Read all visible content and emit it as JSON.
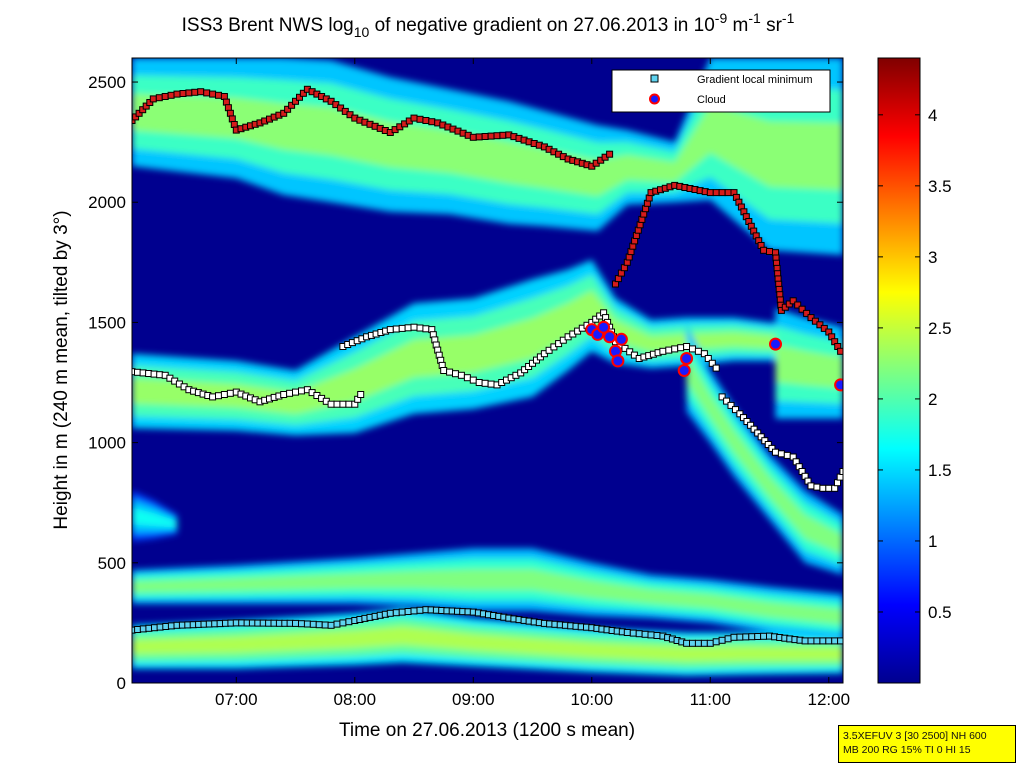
{
  "title": {
    "prefix": "ISS3 Brent NWS log",
    "sub": "10",
    "middle": " of negative gradient on 27.06.2013 in 10",
    "exp1": "-9",
    "unit1": " m",
    "exp2": "-1",
    "unit2": " sr",
    "exp3": "-1"
  },
  "info_box": {
    "line1": "3.5XEFUV 3 [30 2500] NH 600",
    "line2": "MB 200 RG 15% TI 0 HI 15"
  },
  "colors": {
    "background_low": "#00008f",
    "legend_cloud_edge": "#ff0000",
    "legend_minimum_fill": "#5fd3f0"
  },
  "chart_data": {
    "type": "heatmap",
    "title": "ISS3 Brent NWS log10 of negative gradient on 27.06.2013 in 10^-9 m^-1 sr^-1",
    "xlabel": "Time on 27.06.2013 (1200 s mean)",
    "ylabel": "Height in m (240 m mean, tilted by 3°)",
    "x_unit": "hours",
    "xlim": [
      6.12,
      12.12
    ],
    "ylim": [
      0,
      2600
    ],
    "x_ticks": [
      7,
      8,
      9,
      10,
      11,
      12
    ],
    "x_tick_labels": [
      "07:00",
      "08:00",
      "09:00",
      "10:00",
      "11:00",
      "12:00"
    ],
    "y_ticks": [
      0,
      500,
      1000,
      1500,
      2000,
      2500
    ],
    "y_tick_labels": [
      "0",
      "500",
      "1000",
      "1500",
      "2000",
      "2500"
    ],
    "colorbar": {
      "colormap": "jet",
      "range": [
        0,
        4.4
      ],
      "ticks": [
        0.5,
        1,
        1.5,
        2,
        2.5,
        3,
        3.5,
        4
      ],
      "tick_labels": [
        "0.5",
        "1",
        "1.5",
        "2",
        "2.5",
        "3",
        "3.5",
        "4"
      ]
    },
    "legend": {
      "position": "top-right",
      "entries": [
        {
          "label": "Gradient local minimum",
          "marker": "square"
        },
        {
          "label": "Cloud",
          "marker": "circle"
        }
      ]
    },
    "layers": [
      {
        "name": "lowest layer",
        "value": 2.4,
        "points": [
          [
            6.12,
            60,
            240
          ],
          [
            7,
            60,
            260
          ],
          [
            8,
            75,
            290
          ],
          [
            8.4,
            85,
            310
          ],
          [
            9,
            70,
            270
          ],
          [
            10,
            45,
            230
          ],
          [
            10.8,
            30,
            210
          ],
          [
            11.3,
            35,
            210
          ],
          [
            12.12,
            40,
            200
          ]
        ]
      },
      {
        "name": "layer 550 m",
        "value": 2.2,
        "points": [
          [
            6.12,
            330,
            470
          ],
          [
            7,
            330,
            490
          ],
          [
            8,
            330,
            520
          ],
          [
            8.5,
            320,
            540
          ],
          [
            9,
            300,
            560
          ],
          [
            9.5,
            300,
            560
          ],
          [
            10,
            280,
            500
          ],
          [
            10.5,
            270,
            450
          ],
          [
            11,
            250,
            430
          ],
          [
            11.5,
            210,
            400
          ],
          [
            12.12,
            180,
            370
          ]
        ]
      },
      {
        "name": "layer 1300 m",
        "value": 2.3,
        "points": [
          [
            6.12,
            1060,
            1370
          ],
          [
            7,
            1050,
            1340
          ],
          [
            7.5,
            1030,
            1300
          ],
          [
            8,
            1040,
            1440
          ],
          [
            8.5,
            1120,
            1580
          ],
          [
            9,
            1140,
            1600
          ],
          [
            9.5,
            1190,
            1680
          ],
          [
            9.8,
            1300,
            1720
          ],
          [
            10,
            1380,
            1760
          ],
          [
            10.2,
            1330,
            1600
          ],
          [
            10.5,
            1310,
            1510
          ],
          [
            10.8,
            1320,
            1520
          ],
          [
            11.2,
            1340,
            1520
          ],
          [
            11.5,
            1340,
            1500
          ],
          [
            11.8,
            1330,
            1500
          ],
          [
            12.12,
            1300,
            1450
          ]
        ]
      },
      {
        "name": "layer 2200 m",
        "value": 2.25,
        "points": [
          [
            6.12,
            2150,
            2600
          ],
          [
            7,
            2100,
            2600
          ],
          [
            7.4,
            2030,
            2600
          ],
          [
            7.8,
            2000,
            2590
          ],
          [
            8.3,
            1960,
            2520
          ],
          [
            8.8,
            1950,
            2470
          ],
          [
            9.3,
            1910,
            2420
          ],
          [
            9.6,
            1900,
            2380
          ],
          [
            10.05,
            1880,
            2320
          ],
          [
            10.3,
            1990,
            2300
          ],
          [
            10.7,
            2000,
            2250
          ],
          [
            11,
            2010,
            2600
          ],
          [
            11.5,
            1800,
            2600
          ],
          [
            12.12,
            1780,
            2600
          ]
        ]
      },
      {
        "name": "descending plume",
        "value": 2.2,
        "points": [
          [
            10.8,
            1130,
            1490
          ],
          [
            11,
            1000,
            1300
          ],
          [
            11.2,
            860,
            1150
          ],
          [
            11.5,
            680,
            950
          ],
          [
            11.8,
            500,
            800
          ],
          [
            12.12,
            450,
            700
          ]
        ]
      },
      {
        "name": "patch 1500 m",
        "value": 2.25,
        "points": [
          [
            11.55,
            1100,
            1560
          ],
          [
            11.8,
            1100,
            1520
          ],
          [
            12.12,
            1100,
            1480
          ]
        ]
      },
      {
        "name": "left patch",
        "value": 1.7,
        "points": [
          [
            6.12,
            590,
            800
          ],
          [
            6.3,
            600,
            760
          ],
          [
            6.5,
            620,
            700
          ]
        ]
      }
    ],
    "series": [
      {
        "name": "Gradient local minimum",
        "segment": "low",
        "x": [
          6.12,
          6.5,
          7,
          7.5,
          7.8,
          8,
          8.3,
          8.6,
          9,
          9.3,
          9.6,
          10,
          10.3,
          10.6,
          10.8,
          11,
          11.2,
          11.5,
          11.8,
          12.1
        ],
        "y": [
          220,
          240,
          250,
          248,
          240,
          260,
          290,
          305,
          295,
          270,
          248,
          230,
          210,
          195,
          165,
          165,
          190,
          195,
          175,
          175
        ]
      },
      {
        "name": "Gradient local minimum",
        "segment": "1300 m left",
        "x": [
          6.12,
          6.4,
          6.6,
          6.8,
          7,
          7.2,
          7.4,
          7.6,
          7.8,
          8,
          8.05
        ],
        "y": [
          1295,
          1280,
          1220,
          1190,
          1210,
          1170,
          1200,
          1220,
          1160,
          1160,
          1200
        ]
      },
      {
        "name": "Gradient local minimum",
        "segment": "1400 m middle",
        "x": [
          7.9,
          8.1,
          8.3,
          8.5,
          8.65,
          8.75,
          8.9,
          9.05,
          9.2,
          9.4,
          9.6,
          9.8,
          10,
          10.1,
          10.2,
          10.4,
          10.6,
          10.8,
          10.95,
          11.05
        ],
        "y": [
          1400,
          1440,
          1470,
          1480,
          1470,
          1300,
          1280,
          1250,
          1240,
          1290,
          1370,
          1440,
          1500,
          1540,
          1420,
          1350,
          1380,
          1400,
          1370,
          1310
        ]
      },
      {
        "name": "Gradient local minimum",
        "segment": "descending",
        "x": [
          11.1,
          11.25,
          11.4,
          11.55,
          11.7,
          11.85,
          11.95,
          12.05,
          12.12
        ],
        "y": [
          1190,
          1120,
          1040,
          960,
          940,
          820,
          810,
          810,
          880
        ]
      },
      {
        "name": "Gradient local minimum",
        "segment": "2400 m top",
        "x": [
          6.12,
          6.3,
          6.5,
          6.7,
          6.9,
          7,
          7.2,
          7.4,
          7.6,
          7.8,
          8,
          8.3,
          8.5,
          8.7,
          9,
          9.3,
          9.6,
          9.8,
          10,
          10.15
        ],
        "y": [
          2340,
          2430,
          2450,
          2460,
          2440,
          2300,
          2330,
          2370,
          2470,
          2420,
          2350,
          2290,
          2350,
          2330,
          2270,
          2280,
          2230,
          2180,
          2150,
          2200
        ]
      },
      {
        "name": "Gradient local minimum",
        "segment": "upper right",
        "x": [
          10.2,
          10.3,
          10.5,
          10.7,
          11,
          11.2,
          11.45,
          11.55,
          11.6,
          11.7,
          11.85,
          12.0,
          12.1
        ],
        "y": [
          1660,
          1750,
          2040,
          2070,
          2040,
          2040,
          1800,
          1790,
          1550,
          1590,
          1520,
          1460,
          1380
        ]
      },
      {
        "name": "Cloud",
        "x": [
          10.0,
          10.05,
          10.1,
          10.15,
          10.2,
          10.22,
          10.25,
          10.78,
          10.8,
          11.55,
          12.1
        ],
        "y": [
          1470,
          1450,
          1480,
          1440,
          1380,
          1340,
          1430,
          1300,
          1350,
          1410,
          1240
        ]
      }
    ]
  }
}
